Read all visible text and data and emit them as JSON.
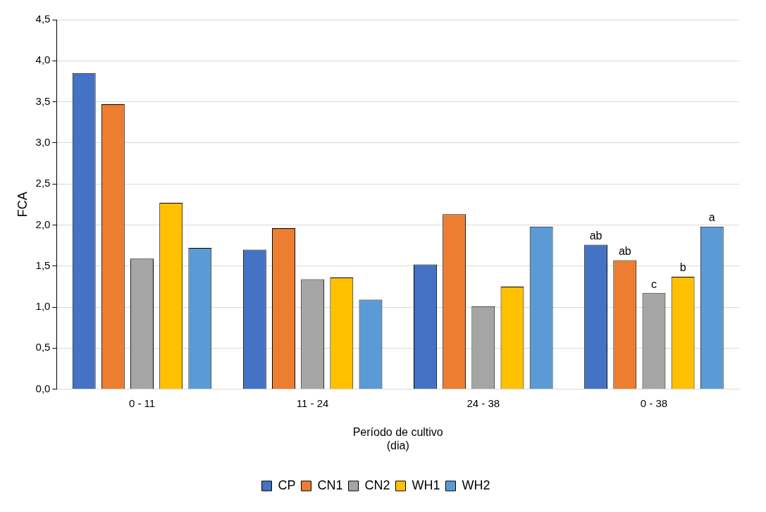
{
  "chart_data": {
    "type": "bar",
    "xlabel": "Período de cultivo\n(dia)",
    "ylabel": "FCA",
    "categories": [
      "0 - 11",
      "11 - 24",
      "24 - 38",
      "0 - 38"
    ],
    "series": [
      {
        "name": "CP",
        "color": "#4472c4",
        "values": [
          3.85,
          1.7,
          1.52,
          1.76
        ],
        "value_labels": [
          null,
          null,
          null,
          "ab"
        ]
      },
      {
        "name": "CN1",
        "color": "#ed7d31",
        "values": [
          3.47,
          1.96,
          2.13,
          1.57
        ],
        "value_labels": [
          null,
          null,
          null,
          "ab"
        ]
      },
      {
        "name": "CN2",
        "color": "#a5a5a5",
        "values": [
          1.59,
          1.34,
          1.01,
          1.17
        ],
        "value_labels": [
          null,
          null,
          null,
          "c"
        ]
      },
      {
        "name": "WH1",
        "color": "#ffc000",
        "values": [
          2.27,
          1.36,
          1.25,
          1.37
        ],
        "value_labels": [
          null,
          null,
          null,
          "b"
        ]
      },
      {
        "name": "WH2",
        "color": "#5b9bd5",
        "values": [
          1.72,
          1.09,
          1.98,
          1.98
        ],
        "value_labels": [
          null,
          null,
          null,
          "a"
        ]
      }
    ],
    "ylim": [
      0,
      4.5
    ],
    "yticks": [
      {
        "value": 0,
        "label": "0,0"
      },
      {
        "value": 0.5,
        "label": "0,5"
      },
      {
        "value": 1,
        "label": "1,0"
      },
      {
        "value": 1.5,
        "label": "1,5"
      },
      {
        "value": 2,
        "label": "2,0"
      },
      {
        "value": 2.5,
        "label": "2,5"
      },
      {
        "value": 3,
        "label": "3,0"
      },
      {
        "value": 3.5,
        "label": "3,5"
      },
      {
        "value": 4,
        "label": "4,0"
      },
      {
        "value": 4.5,
        "label": "4,5"
      }
    ],
    "grid": "y",
    "legend": "bottom"
  }
}
